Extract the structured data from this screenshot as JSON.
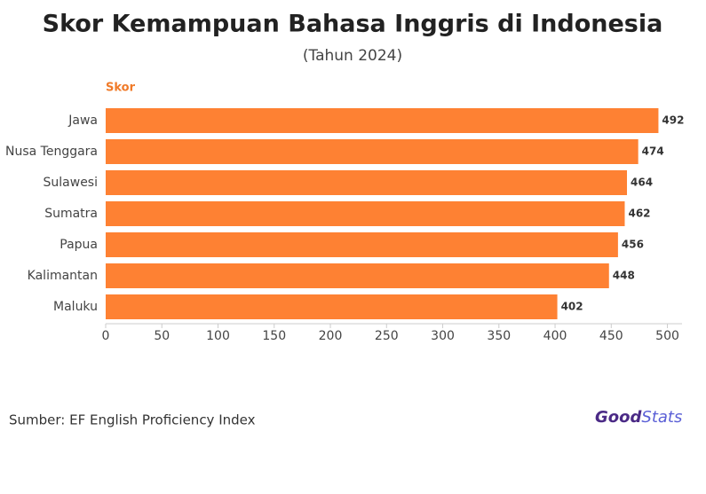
{
  "chart_data": {
    "type": "hbar",
    "title": "Skor Kemampuan Bahasa Inggris di Indonesia",
    "subtitle": "(Tahun 2024)",
    "axis_label": "Skor",
    "categories": [
      "Jawa",
      "Nusa Tenggara",
      "Sulawesi",
      "Sumatra",
      "Papua",
      "Kalimantan",
      "Maluku"
    ],
    "values": [
      492,
      474,
      464,
      462,
      456,
      448,
      402
    ],
    "color": "#fe8133",
    "xlim": [
      0,
      513
    ],
    "xticks": [
      0,
      50,
      100,
      150,
      200,
      250,
      300,
      350,
      400,
      450,
      500
    ],
    "source": "Sumber: EF English Proficiency Index",
    "logo": {
      "first": "Good",
      "second": "Stats"
    }
  }
}
